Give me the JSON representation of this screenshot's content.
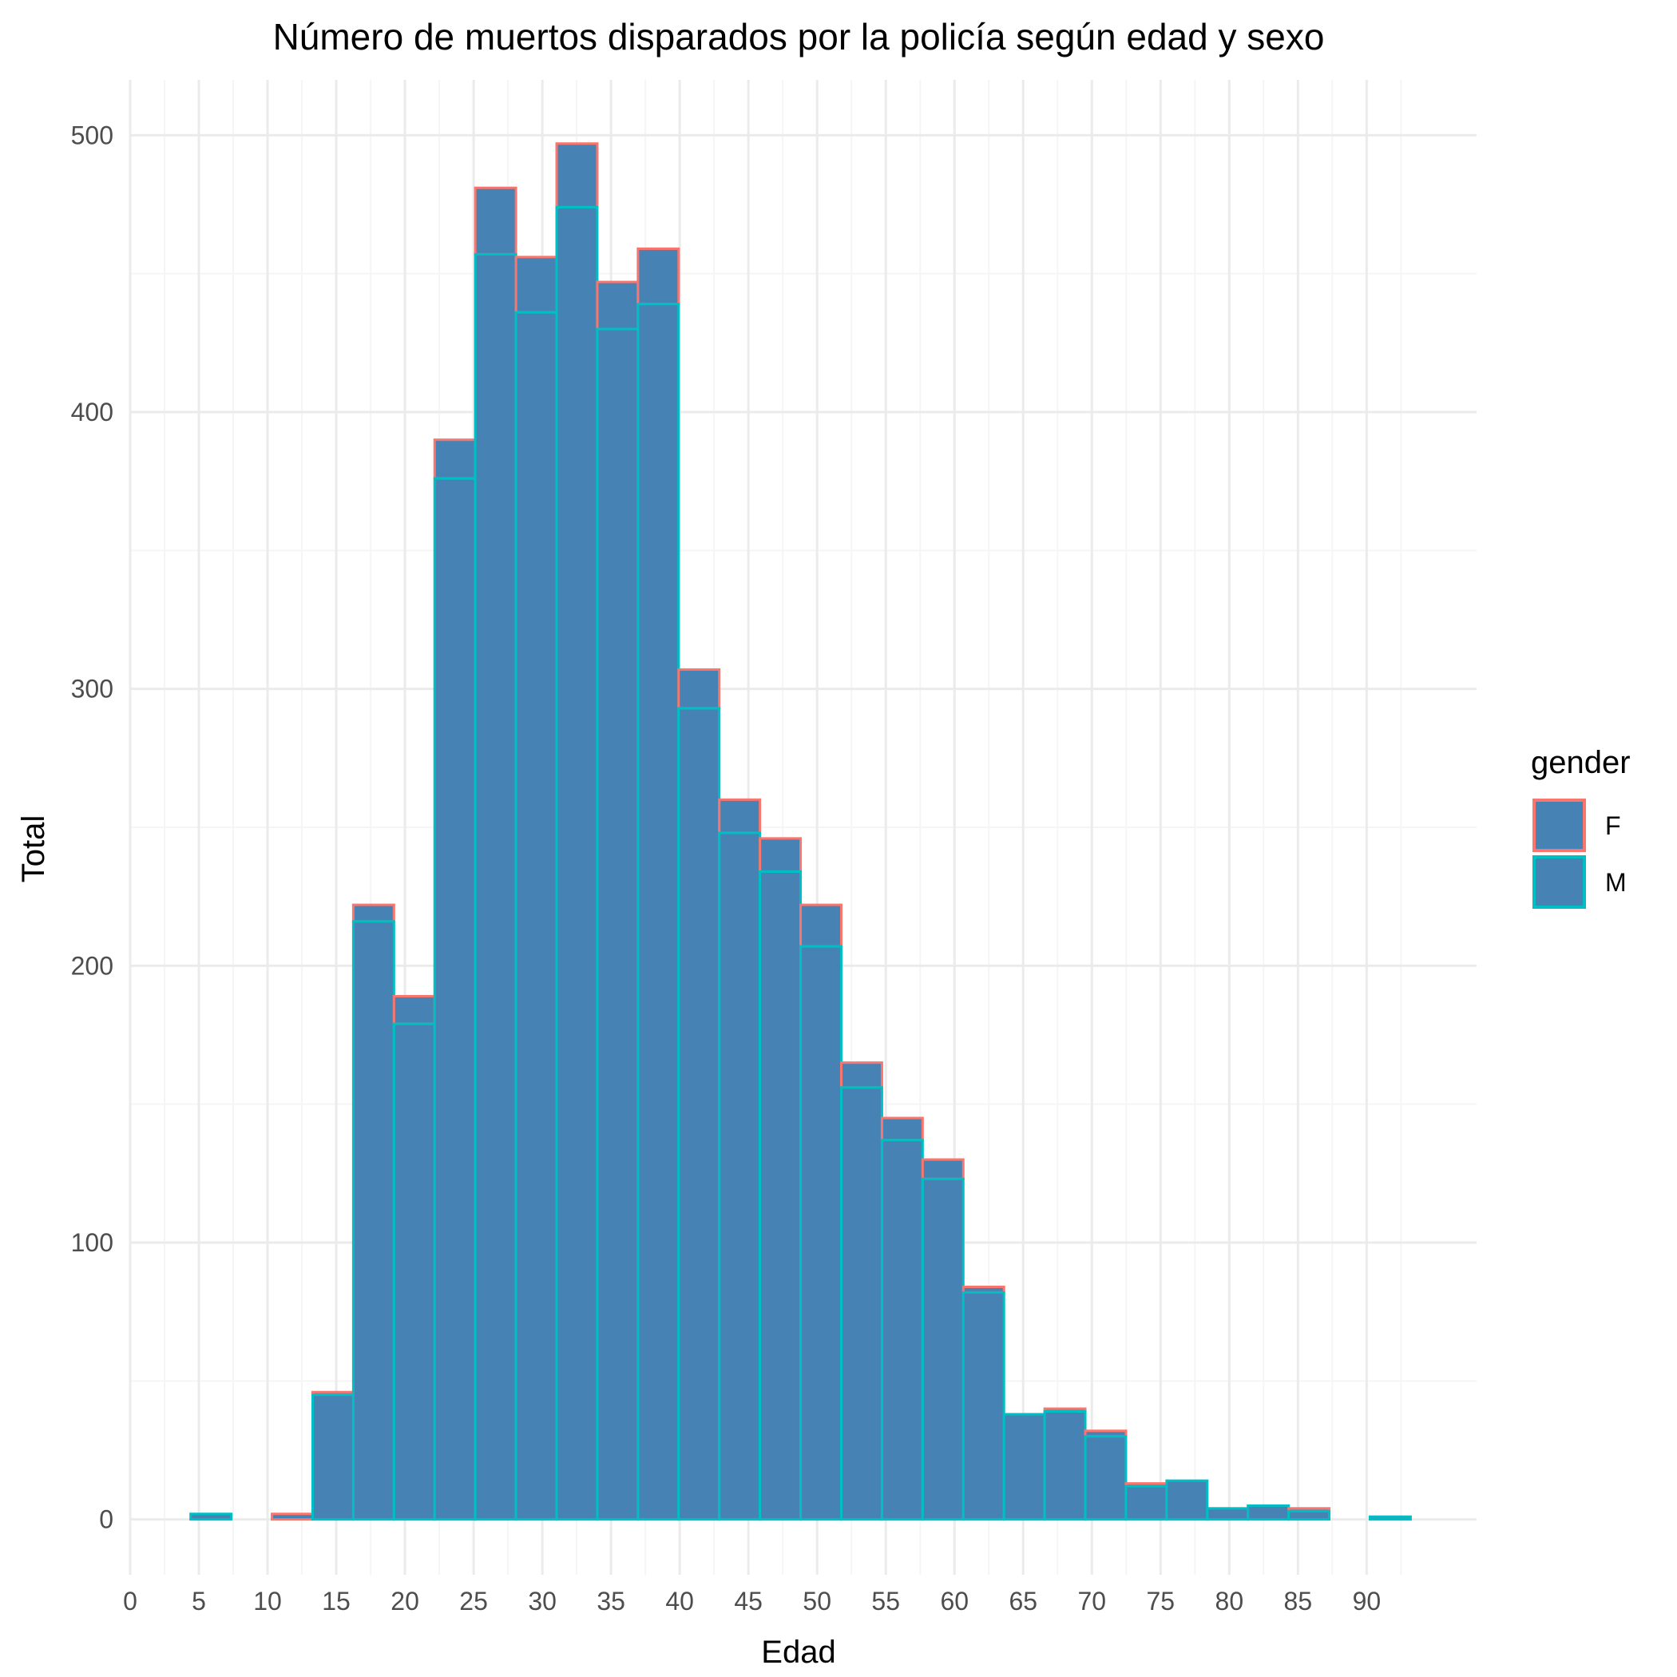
{
  "chart_data": {
    "type": "bar",
    "title": "Número de muertos disparados por la policía según edad y sexo",
    "xlabel": "Edad",
    "ylabel": "Total",
    "xlim": [
      0,
      98
    ],
    "ylim": [
      -20,
      520
    ],
    "x_ticks": [
      0,
      5,
      10,
      15,
      20,
      25,
      30,
      35,
      40,
      45,
      50,
      55,
      60,
      65,
      70,
      75,
      80,
      85,
      90
    ],
    "y_ticks": [
      0,
      100,
      200,
      300,
      400,
      500
    ],
    "y_minor_ticks": [
      50,
      150,
      250,
      350,
      450
    ],
    "grid": true,
    "stacked": true,
    "fill_color": "#4682b4",
    "bins": {
      "start": 4.4,
      "width": 2.96,
      "left_edges": [
        4.4,
        7.36,
        10.32,
        13.28,
        16.24,
        19.2,
        22.16,
        25.12,
        28.08,
        31.04,
        34.0,
        36.96,
        39.92,
        42.88,
        45.84,
        48.8,
        51.76,
        54.72,
        57.68,
        60.64,
        63.6,
        66.56,
        69.52,
        72.48,
        75.44,
        78.4,
        81.36,
        84.32,
        87.28,
        90.24
      ]
    },
    "series": [
      {
        "name": "M",
        "color": "#00bfc4",
        "values": [
          2,
          0,
          0,
          45,
          216,
          179,
          376,
          457,
          436,
          474,
          430,
          439,
          293,
          248,
          234,
          207,
          156,
          137,
          123,
          82,
          38,
          39,
          30,
          12,
          14,
          4,
          5,
          3,
          0,
          1
        ]
      },
      {
        "name": "F",
        "color": "#f8766d",
        "values": [
          0,
          0,
          2,
          1,
          6,
          10,
          14,
          24,
          20,
          23,
          17,
          20,
          14,
          12,
          12,
          15,
          9,
          8,
          7,
          2,
          0,
          1,
          2,
          1,
          0,
          0,
          0,
          1,
          0,
          0
        ]
      }
    ],
    "legend": {
      "title": "gender",
      "position": "right",
      "entries": [
        "F",
        "M"
      ]
    }
  },
  "colors": {
    "panel_background": "#ffffff",
    "grid_major": "#ebebeb",
    "grid_minor": "#f5f5f5"
  }
}
